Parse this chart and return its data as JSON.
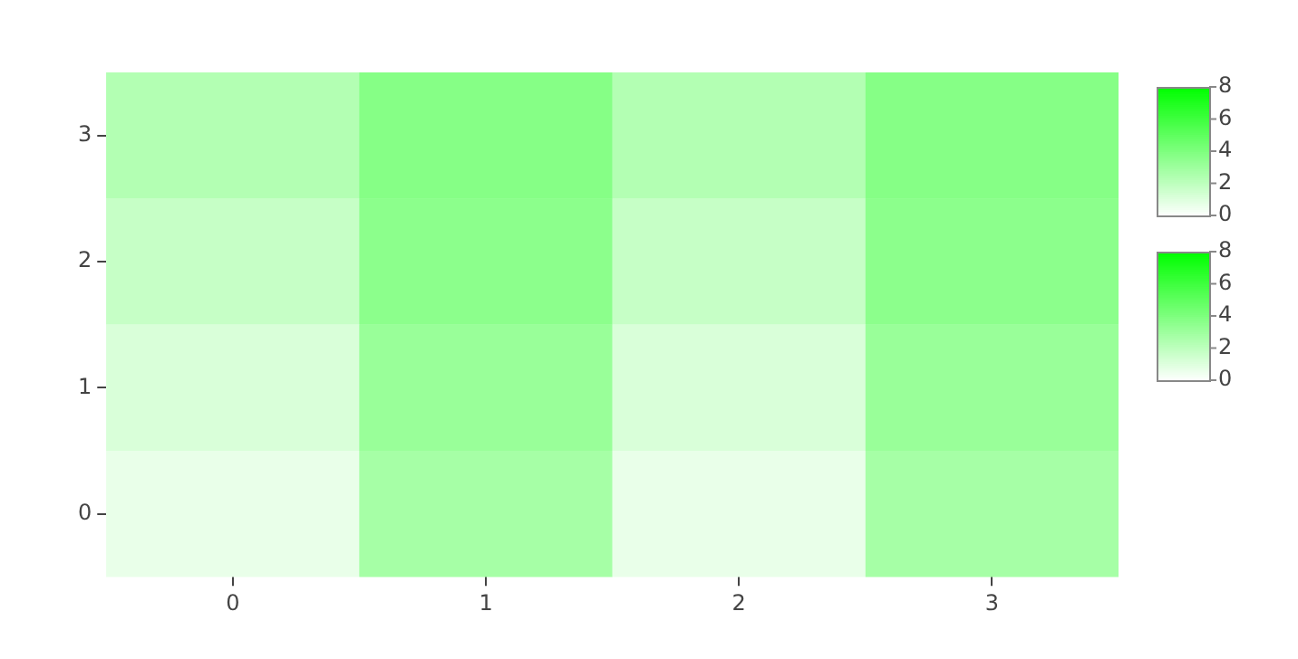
{
  "chart_data": [
    {
      "type": "heatmap",
      "categories": [
        "0",
        "1",
        "2",
        "3"
      ],
      "y_categories": [
        "3",
        "2",
        "1",
        "0"
      ],
      "cells": [
        [
          2.4,
          3.8,
          2.4,
          3.8
        ],
        [
          1.8,
          3.6,
          1.8,
          3.6
        ],
        [
          1.2,
          3.2,
          1.2,
          3.2
        ],
        [
          0.7,
          2.8,
          0.7,
          2.8
        ]
      ],
      "clim": [
        0,
        8
      ],
      "cticks": [
        0,
        2,
        4,
        6,
        8
      ]
    },
    {
      "type": "heatmap",
      "categories": [
        "0",
        "1",
        "2",
        "3"
      ],
      "y_categories": [
        "3",
        "2",
        "1",
        "0"
      ],
      "cells": [
        [
          2.4,
          3.8,
          2.4,
          3.8
        ],
        [
          1.8,
          3.6,
          1.8,
          3.6
        ],
        [
          1.2,
          3.2,
          1.2,
          3.2
        ],
        [
          0.7,
          2.8,
          0.7,
          2.8
        ]
      ],
      "clim": [
        0,
        8
      ],
      "cticks": [
        0,
        2,
        4,
        6,
        8
      ],
      "tick_labels": false
    }
  ]
}
